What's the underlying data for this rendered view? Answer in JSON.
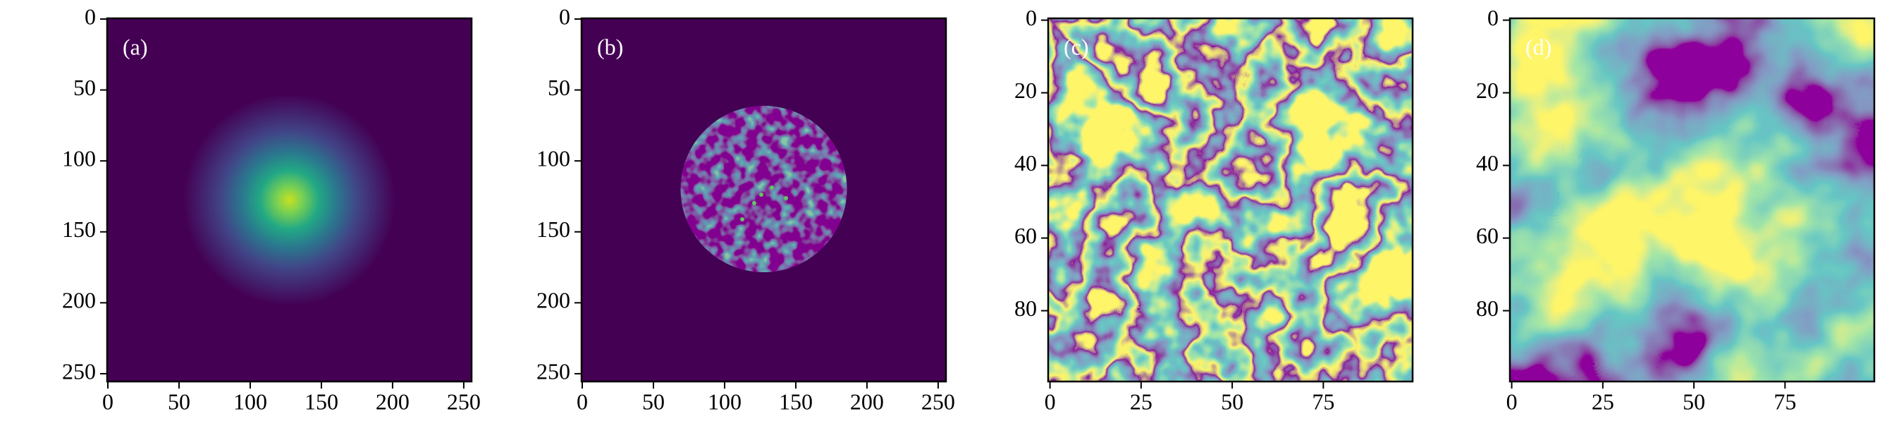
{
  "chart_data": [
    {
      "type": "image",
      "label": "(a)",
      "cmap": "viridis",
      "xlim": [
        -0.5,
        255.5
      ],
      "ylim": [
        255.5,
        -0.5
      ],
      "xticks": [
        0,
        50,
        100,
        150,
        200,
        250
      ],
      "yticks": [
        0,
        50,
        100,
        150,
        200,
        250
      ]
    },
    {
      "type": "image",
      "label": "(b)",
      "cmap": "viridis",
      "xlim": [
        -0.5,
        255.5
      ],
      "ylim": [
        255.5,
        -0.5
      ],
      "xticks": [
        0,
        50,
        100,
        150,
        200,
        250
      ],
      "yticks": [
        0,
        50,
        100,
        150,
        200,
        250
      ]
    },
    {
      "type": "image",
      "label": "(c)",
      "cmap": "viridis",
      "xlim": [
        -0.5,
        99.5
      ],
      "ylim": [
        99.5,
        -0.5
      ],
      "xticks": [
        0,
        25,
        50,
        75
      ],
      "yticks": [
        0,
        20,
        40,
        60,
        80
      ]
    },
    {
      "type": "image",
      "label": "(d)",
      "cmap": "viridis",
      "xlim": [
        -0.5,
        99.5
      ],
      "ylim": [
        99.5,
        -0.5
      ],
      "xticks": [
        0,
        25,
        50,
        75
      ],
      "yticks": [
        0,
        20,
        40,
        60,
        80
      ]
    }
  ]
}
